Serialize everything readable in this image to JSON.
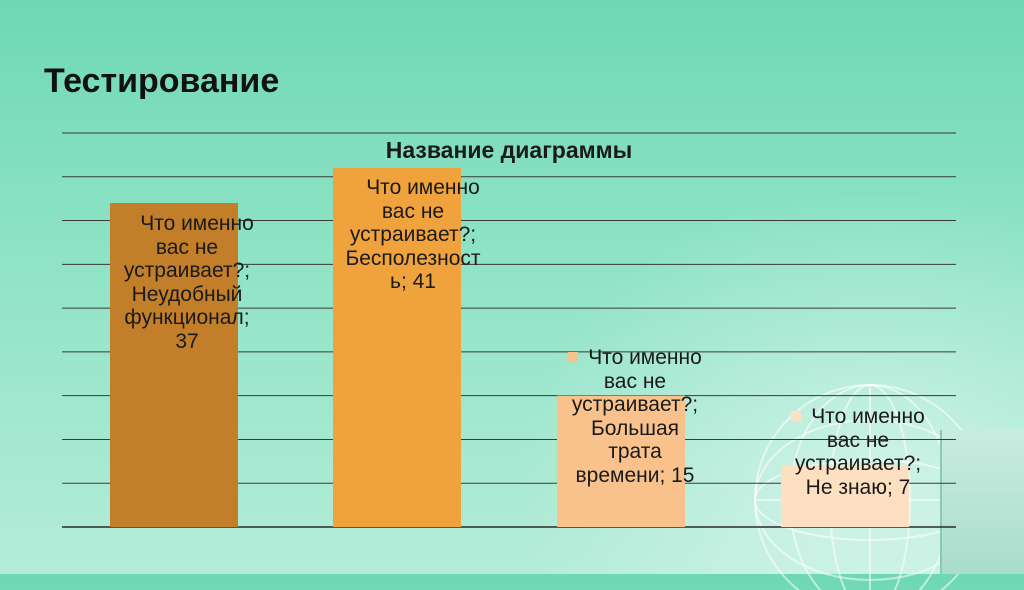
{
  "slide": {
    "title": "Тестирование"
  },
  "chart_data": {
    "type": "bar",
    "title": "Название диаграммы",
    "categories": [
      "Что именно вас не устраивает?"
    ],
    "series": [
      {
        "name": "Неудобный функционал",
        "values": [
          37
        ],
        "color": "#c27e28",
        "label": [
          "Что именно",
          "вас не",
          "устраивает?;",
          "Неудобный",
          "функционал;",
          "37"
        ]
      },
      {
        "name": "Бесполезность",
        "values": [
          41
        ],
        "color": "#f0a33c",
        "label": [
          "Что именно",
          "вас не",
          "устраивает?;",
          "Бесполезност",
          "ь; 41"
        ]
      },
      {
        "name": "Большая трата времени",
        "values": [
          15
        ],
        "color": "#f9c28c",
        "label": [
          "Что именно",
          "вас не",
          "устраивает?;",
          "Большая",
          "трата",
          "времени; 15"
        ]
      },
      {
        "name": "Не знаю",
        "values": [
          7
        ],
        "color": "#fde0c2",
        "label": [
          "Что именно",
          "вас не",
          "устраивает?;",
          "Не знаю; 7"
        ]
      }
    ],
    "ylim": [
      0,
      45
    ],
    "grid": true,
    "legend": "none"
  }
}
